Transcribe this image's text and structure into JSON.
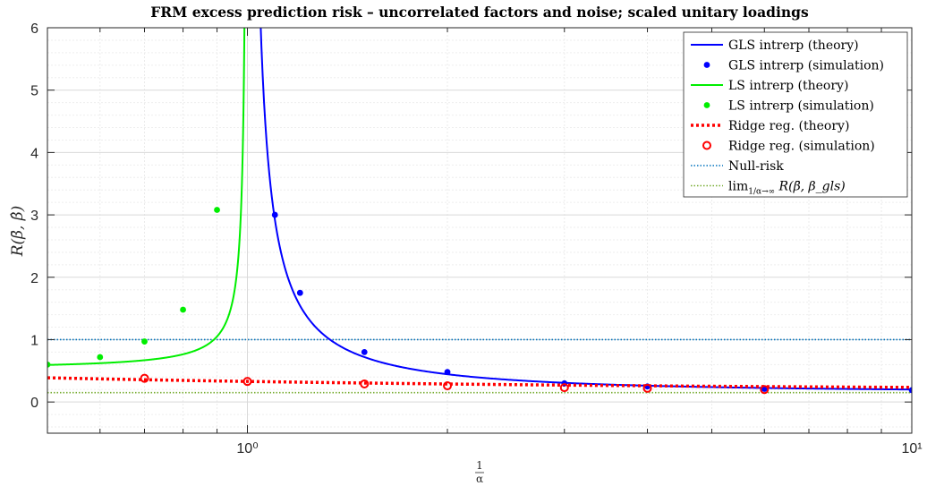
{
  "chart_data": {
    "type": "line",
    "title": "FRM excess prediction risk – uncorrelated factors and noise; scaled unitary loadings",
    "xlabel_num": "1",
    "xlabel_den": "α",
    "ylabel": "R(β̄, β̂)",
    "xscale": "log",
    "xlim": [
      0.5,
      10
    ],
    "ylim": [
      -0.5,
      6
    ],
    "x_ticks": [
      1,
      10
    ],
    "x_tick_labels": [
      "10⁰",
      "10¹"
    ],
    "y_ticks": [
      0,
      1,
      2,
      3,
      4,
      5,
      6
    ],
    "y_tick_labels": [
      "0",
      "1",
      "2",
      "3",
      "4",
      "5",
      "6"
    ],
    "grid": true,
    "legend_position": "top-right",
    "series": [
      {
        "name": "GLS intrerp (theory)",
        "kind": "gls-theory",
        "color": "#0000ff",
        "style": "solid"
      },
      {
        "name": "GLS intrerp (simulation)",
        "color": "#0000ff",
        "style": "dots",
        "x": [
          1.1,
          1.2,
          1.5,
          2,
          3,
          4,
          6,
          10
        ],
        "y": [
          3.0,
          1.75,
          0.8,
          0.48,
          0.3,
          0.25,
          0.21,
          0.19
        ]
      },
      {
        "name": "LS intrerp (theory)",
        "kind": "ls-theory",
        "color": "#00ee00",
        "style": "solid"
      },
      {
        "name": "LS intrerp (simulation)",
        "color": "#00ee00",
        "style": "dots",
        "x": [
          0.5,
          0.6,
          0.7,
          0.8,
          0.9
        ],
        "y": [
          0.6,
          0.72,
          0.97,
          1.48,
          3.08
        ]
      },
      {
        "name": "Ridge reg. (theory)",
        "kind": "ridge-theory",
        "color": "#ff0000",
        "style": "dotted-thick"
      },
      {
        "name": "Ridge reg. (simulation)",
        "color": "#ff0000",
        "style": "circles",
        "x": [
          0.7,
          1,
          1.5,
          2,
          3,
          4,
          6
        ],
        "y": [
          0.38,
          0.33,
          0.29,
          0.26,
          0.23,
          0.22,
          0.2
        ]
      },
      {
        "name": "Null-risk",
        "color": "#0072bd",
        "style": "dotted",
        "value": 1.0
      },
      {
        "name": "lim R(β̄, β_gls)",
        "legend_sub": "1/α→∞",
        "color": "#77ac30",
        "style": "dotted",
        "value": 0.15
      }
    ]
  }
}
